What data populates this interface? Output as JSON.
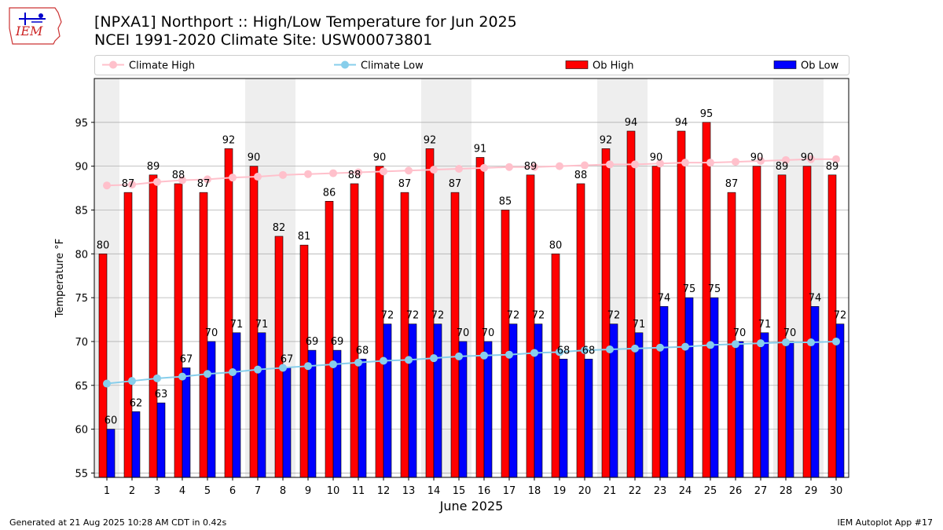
{
  "header": {
    "title_line1": "[NPXA1] Northport :: High/Low Temperature for Jun 2025",
    "title_line2": "NCEI 1991-2020 Climate Site: USW00073801",
    "logo_text": "IEM"
  },
  "footer": {
    "generated": "Generated at 21 Aug 2025 10:28 AM CDT in 0.42s",
    "app": "IEM Autoplot App #17"
  },
  "colors": {
    "ob_high": "#ff0000",
    "ob_low": "#0000ff",
    "climate_high": "#ffc0cb",
    "climate_low": "#87ceeb",
    "weekend_shade": "#eeeeee",
    "grid": "#b0b0b0"
  },
  "chart_data": {
    "type": "bar",
    "xlabel": "June 2025",
    "ylabel": "Temperature °F",
    "ylim": [
      54.5,
      100
    ],
    "yticks": [
      55,
      60,
      65,
      70,
      75,
      80,
      85,
      90,
      95
    ],
    "grid": true,
    "legend_position": "top",
    "shaded_days": [
      1,
      7,
      8,
      14,
      15,
      21,
      22,
      28,
      29
    ],
    "categories": [
      "1",
      "2",
      "3",
      "4",
      "5",
      "6",
      "7",
      "8",
      "9",
      "10",
      "11",
      "12",
      "13",
      "14",
      "15",
      "16",
      "17",
      "18",
      "19",
      "20",
      "21",
      "22",
      "23",
      "24",
      "25",
      "26",
      "27",
      "28",
      "29",
      "30"
    ],
    "series": [
      {
        "name": "Climate High",
        "kind": "line",
        "values": [
          87.8,
          87.9,
          88.2,
          88.4,
          88.5,
          88.7,
          88.8,
          89.0,
          89.1,
          89.2,
          89.3,
          89.4,
          89.5,
          89.6,
          89.7,
          89.8,
          89.9,
          89.9,
          90.0,
          90.1,
          90.2,
          90.2,
          90.3,
          90.4,
          90.4,
          90.5,
          90.6,
          90.7,
          90.8,
          90.8
        ]
      },
      {
        "name": "Climate Low",
        "kind": "line",
        "values": [
          65.2,
          65.5,
          65.8,
          66.0,
          66.3,
          66.5,
          66.8,
          67.0,
          67.2,
          67.4,
          67.6,
          67.8,
          67.9,
          68.1,
          68.3,
          68.4,
          68.5,
          68.7,
          68.8,
          69.0,
          69.1,
          69.2,
          69.3,
          69.4,
          69.6,
          69.7,
          69.8,
          69.9,
          69.9,
          70.0
        ]
      },
      {
        "name": "Ob High",
        "kind": "bar",
        "values": [
          80,
          87,
          89,
          88,
          87,
          92,
          90,
          82,
          81,
          86,
          88,
          90,
          87,
          92,
          87,
          91,
          85,
          89,
          80,
          88,
          92,
          94,
          90,
          94,
          95,
          87,
          90,
          89,
          90,
          89
        ]
      },
      {
        "name": "Ob Low",
        "kind": "bar",
        "values": [
          60,
          62,
          63,
          67,
          70,
          71,
          71,
          67,
          69,
          69,
          68,
          72,
          72,
          72,
          70,
          70,
          72,
          72,
          68,
          68,
          72,
          71,
          74,
          75,
          75,
          70,
          71,
          70,
          74,
          72
        ]
      }
    ]
  }
}
